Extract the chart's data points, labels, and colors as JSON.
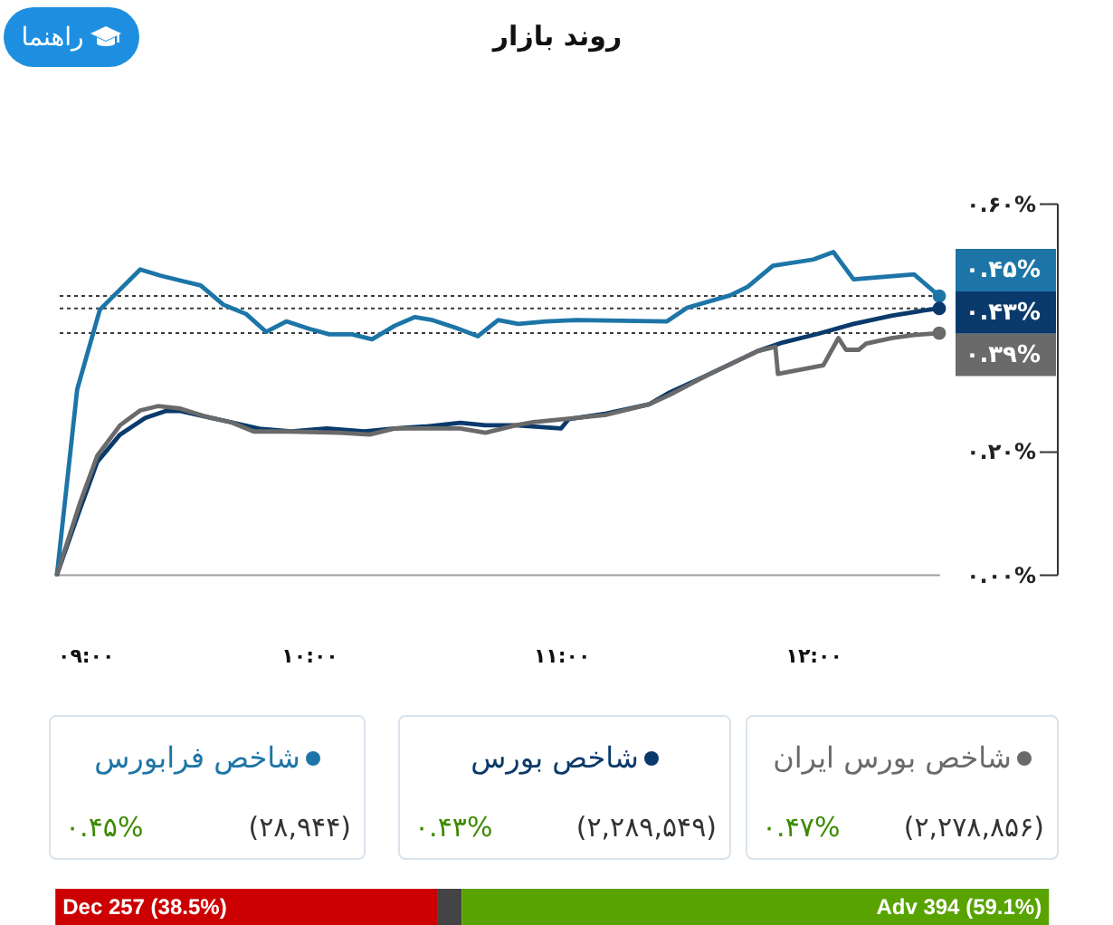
{
  "chart_data": [
    {
      "type": "line",
      "title": "روند بازار",
      "xlim": [
        9,
        12.5
      ],
      "xticks": [
        {
          "value": 9,
          "label": "۰۹:۰۰"
        },
        {
          "value": 10,
          "label": "۱۰:۰۰"
        },
        {
          "value": 11,
          "label": "۱۱:۰۰"
        },
        {
          "value": 12,
          "label": "۱۲:۰۰"
        }
      ],
      "ylim": [
        0,
        0.6
      ],
      "yticks": [
        {
          "value": 0,
          "label": "۰.۰۰%"
        },
        {
          "value": 0.2,
          "label": "۰.۲۰%"
        },
        {
          "value": 0.6,
          "label": "۰.۶۰%"
        }
      ],
      "legend": "bottom",
      "series": [
        {
          "name": "شاخص فرابورس",
          "color": "#1d75a7",
          "x": [
            9,
            9.08,
            9.17,
            9.33,
            9.41,
            9.49,
            9.57,
            9.66,
            9.75,
            9.83,
            9.91,
            10,
            10.08,
            10.17,
            10.25,
            10.34,
            10.42,
            10.49,
            10.58,
            10.67,
            10.75,
            10.83,
            10.94,
            11.06,
            11.42,
            11.5,
            11.67,
            11.74,
            11.84,
            12,
            12.08,
            12.16,
            12.4,
            12.5
          ],
          "values": [
            0,
            0.299,
            0.428,
            0.493,
            0.483,
            0.475,
            0.467,
            0.436,
            0.421,
            0.392,
            0.409,
            0.397,
            0.388,
            0.388,
            0.38,
            0.402,
            0.416,
            0.411,
            0.399,
            0.385,
            0.411,
            0.405,
            0.409,
            0.411,
            0.409,
            0.431,
            0.451,
            0.465,
            0.499,
            0.509,
            0.521,
            0.477,
            0.485,
            0.45
          ]
        },
        {
          "name": "شاخص بورس",
          "color": "#0a3a6b",
          "x": [
            9,
            9.09,
            9.16,
            9.25,
            9.35,
            9.43,
            9.49,
            9.59,
            9.69,
            9.81,
            9.93,
            10.07,
            10.22,
            10.34,
            10.46,
            10.6,
            10.7,
            10.82,
            11,
            11.03,
            11.18,
            11.35,
            11.43,
            11.59,
            11.78,
            11.88,
            12.02,
            12.16,
            12.31,
            12.43,
            12.5
          ],
          "values": [
            0,
            0.104,
            0.182,
            0.226,
            0.253,
            0.264,
            0.264,
            0.255,
            0.246,
            0.235,
            0.231,
            0.236,
            0.231,
            0.236,
            0.239,
            0.245,
            0.241,
            0.241,
            0.236,
            0.251,
            0.26,
            0.275,
            0.294,
            0.324,
            0.361,
            0.375,
            0.389,
            0.405,
            0.418,
            0.426,
            0.43
          ]
        },
        {
          "name": "شاخص بورس ایران",
          "color": "#6a6a6a",
          "x": [
            9,
            9.09,
            9.16,
            9.25,
            9.33,
            9.4,
            9.49,
            9.59,
            9.69,
            9.78,
            9.93,
            10.12,
            10.24,
            10.34,
            10.46,
            10.6,
            10.7,
            10.82,
            10.89,
            11.01,
            11.18,
            11.35,
            11.43,
            11.59,
            11.78,
            11.85,
            11.86,
            12.04,
            12.1,
            12.13,
            12.18,
            12.21,
            12.31,
            12.4,
            12.5
          ],
          "values": [
            0,
            0.114,
            0.192,
            0.241,
            0.265,
            0.272,
            0.268,
            0.255,
            0.246,
            0.231,
            0.231,
            0.229,
            0.226,
            0.236,
            0.236,
            0.236,
            0.229,
            0.241,
            0.246,
            0.251,
            0.258,
            0.275,
            0.29,
            0.324,
            0.361,
            0.368,
            0.324,
            0.338,
            0.382,
            0.363,
            0.363,
            0.373,
            0.382,
            0.387,
            0.39
          ]
        },
        {
          "type": "scatter",
          "color": "#1d75a7",
          "x": [
            12.5
          ],
          "values": [
            0.45
          ],
          "value_labels": [
            "۰.۴۵%"
          ]
        },
        {
          "type": "scatter",
          "color": "#0a3a6b",
          "x": [
            12.5
          ],
          "values": [
            0.43
          ],
          "value_labels": [
            "۰.۴۳%"
          ]
        },
        {
          "type": "scatter",
          "color": "#6a6a6a",
          "x": [
            12.5
          ],
          "values": [
            0.39
          ],
          "value_labels": [
            "۰.۳۹%"
          ]
        }
      ],
      "ref_lines": [
        {
          "axis": "y",
          "value": 0.45,
          "color": "#3a3a3a",
          "line_style": "dotted"
        },
        {
          "axis": "y",
          "value": 0.43,
          "color": "#3a3a3a",
          "line_style": "dotted"
        },
        {
          "axis": "y",
          "value": 0.39,
          "color": "#3a3a3a",
          "line_style": "dotted"
        }
      ],
      "annotations": [
        "راهنما",
        "(۲۸,۹۴۴)",
        "۰.۴۵%",
        "(۲,۲۸۹,۵۴۹)",
        "۰.۴۳%",
        "(۲,۲۷۸,۸۵۶)",
        "۰.۴۷%"
      ]
    },
    {
      "type": "bar",
      "orientation": "horizontal",
      "stacked": true,
      "categories": [
        null
      ],
      "series": [
        {
          "color": "#cc0000",
          "values": [
            38.5
          ],
          "value_labels": [
            "Dec 257 (38.5%)"
          ]
        },
        {
          "color": "#444444",
          "values": [
            2.4
          ]
        },
        {
          "color": "#58a300",
          "values": [
            59.1
          ],
          "value_labels": [
            "Adv 394 (59.1%)"
          ]
        }
      ],
      "xlim": [
        0,
        100
      ],
      "tick_labels": false
    }
  ]
}
